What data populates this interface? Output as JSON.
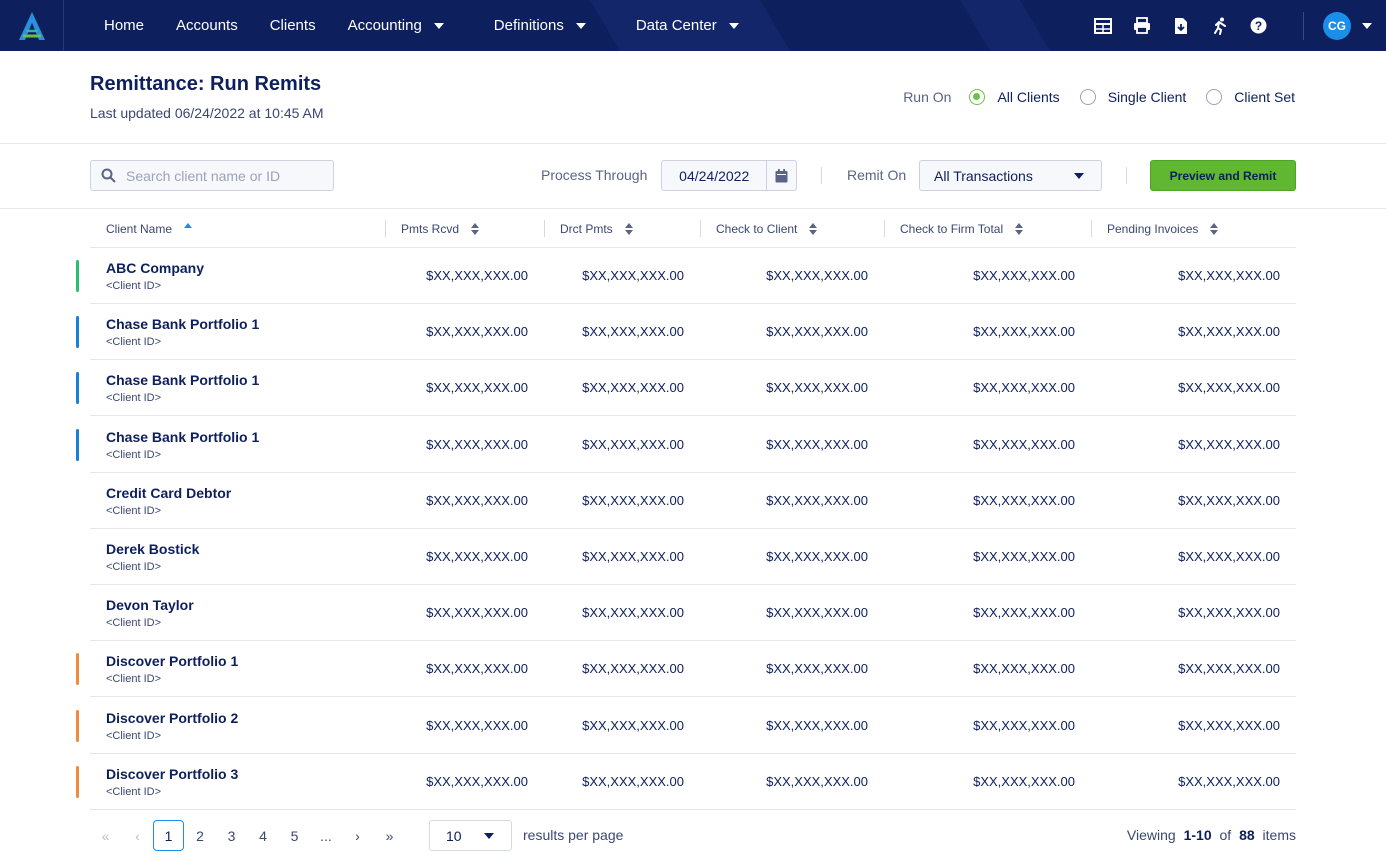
{
  "nav": {
    "links": [
      {
        "label": "Home",
        "has_caret": false
      },
      {
        "label": "Accounts",
        "has_caret": false
      },
      {
        "label": "Clients",
        "has_caret": false
      },
      {
        "label": "Accounting",
        "has_caret": true
      },
      {
        "label": "Definitions",
        "has_caret": true
      },
      {
        "label": "Data Center",
        "has_caret": true
      }
    ],
    "icons": [
      "table-icon",
      "print-icon",
      "file-download-icon",
      "runner-icon",
      "help-icon"
    ],
    "avatar_initials": "CG",
    "colors": {
      "bg": "#0d1f5c",
      "avatar": "#1a8ee8"
    }
  },
  "header": {
    "title": "Remittance: Run Remits",
    "subtitle": "Last updated 06/24/2022 at 10:45 AM",
    "run_on_label": "Run On",
    "run_on_options": [
      {
        "label": "All Clients",
        "selected": true
      },
      {
        "label": "Single Client",
        "selected": false
      },
      {
        "label": "Client Set",
        "selected": false
      }
    ]
  },
  "toolbar": {
    "search_placeholder": "Search client name or ID",
    "process_through_label": "Process Through",
    "process_through_value": "04/24/2022",
    "remit_on_label": "Remit On",
    "remit_on_value": "All Transactions",
    "preview_button": "Preview and Remit",
    "accent": "#5fb82f"
  },
  "table": {
    "columns": [
      "Client Name",
      "Pmts Rcvd",
      "Drct Pmts",
      "Check to Client",
      "Check to Firm Total",
      "Pending Invoices"
    ],
    "rows": [
      {
        "name": "ABC Company",
        "id": "<Client ID>",
        "color": "#2dbd6e",
        "values": [
          "$XX,XXX,XXX.00",
          "$XX,XXX,XXX.00",
          "$XX,XXX,XXX.00",
          "$XX,XXX,XXX.00",
          "$XX,XXX,XXX.00"
        ]
      },
      {
        "name": "Chase Bank Portfolio 1",
        "id": "<Client ID>",
        "color": "#1a7fd6",
        "values": [
          "$XX,XXX,XXX.00",
          "$XX,XXX,XXX.00",
          "$XX,XXX,XXX.00",
          "$XX,XXX,XXX.00",
          "$XX,XXX,XXX.00"
        ]
      },
      {
        "name": "Chase Bank Portfolio 1",
        "id": "<Client ID>",
        "color": "#1a7fd6",
        "values": [
          "$XX,XXX,XXX.00",
          "$XX,XXX,XXX.00",
          "$XX,XXX,XXX.00",
          "$XX,XXX,XXX.00",
          "$XX,XXX,XXX.00"
        ]
      },
      {
        "name": "Chase Bank Portfolio 1",
        "id": "<Client ID>",
        "color": "#1a7fd6",
        "values": [
          "$XX,XXX,XXX.00",
          "$XX,XXX,XXX.00",
          "$XX,XXX,XXX.00",
          "$XX,XXX,XXX.00",
          "$XX,XXX,XXX.00"
        ]
      },
      {
        "name": "Credit Card Debtor",
        "id": "<Client ID>",
        "color": "",
        "values": [
          "$XX,XXX,XXX.00",
          "$XX,XXX,XXX.00",
          "$XX,XXX,XXX.00",
          "$XX,XXX,XXX.00",
          "$XX,XXX,XXX.00"
        ]
      },
      {
        "name": "Derek Bostick",
        "id": "<Client ID>",
        "color": "",
        "values": [
          "$XX,XXX,XXX.00",
          "$XX,XXX,XXX.00",
          "$XX,XXX,XXX.00",
          "$XX,XXX,XXX.00",
          "$XX,XXX,XXX.00"
        ]
      },
      {
        "name": "Devon Taylor",
        "id": "<Client ID>",
        "color": "",
        "values": [
          "$XX,XXX,XXX.00",
          "$XX,XXX,XXX.00",
          "$XX,XXX,XXX.00",
          "$XX,XXX,XXX.00",
          "$XX,XXX,XXX.00"
        ]
      },
      {
        "name": "Discover Portfolio 1",
        "id": "<Client ID>",
        "color": "#f08a3c",
        "values": [
          "$XX,XXX,XXX.00",
          "$XX,XXX,XXX.00",
          "$XX,XXX,XXX.00",
          "$XX,XXX,XXX.00",
          "$XX,XXX,XXX.00"
        ]
      },
      {
        "name": "Discover Portfolio 2",
        "id": "<Client ID>",
        "color": "#f08a3c",
        "values": [
          "$XX,XXX,XXX.00",
          "$XX,XXX,XXX.00",
          "$XX,XXX,XXX.00",
          "$XX,XXX,XXX.00",
          "$XX,XXX,XXX.00"
        ]
      },
      {
        "name": "Discover Portfolio 3",
        "id": "<Client ID>",
        "color": "#f08a3c",
        "values": [
          "$XX,XXX,XXX.00",
          "$XX,XXX,XXX.00",
          "$XX,XXX,XXX.00",
          "$XX,XXX,XXX.00",
          "$XX,XXX,XXX.00"
        ]
      }
    ]
  },
  "pagination": {
    "pages": [
      "1",
      "2",
      "3",
      "4",
      "5",
      "..."
    ],
    "current": "1",
    "per_page": "10",
    "per_page_label": "results per page",
    "viewing_prefix": "Viewing",
    "viewing_range": "1-10",
    "viewing_of": "of",
    "viewing_total": "88",
    "viewing_suffix": "items"
  }
}
